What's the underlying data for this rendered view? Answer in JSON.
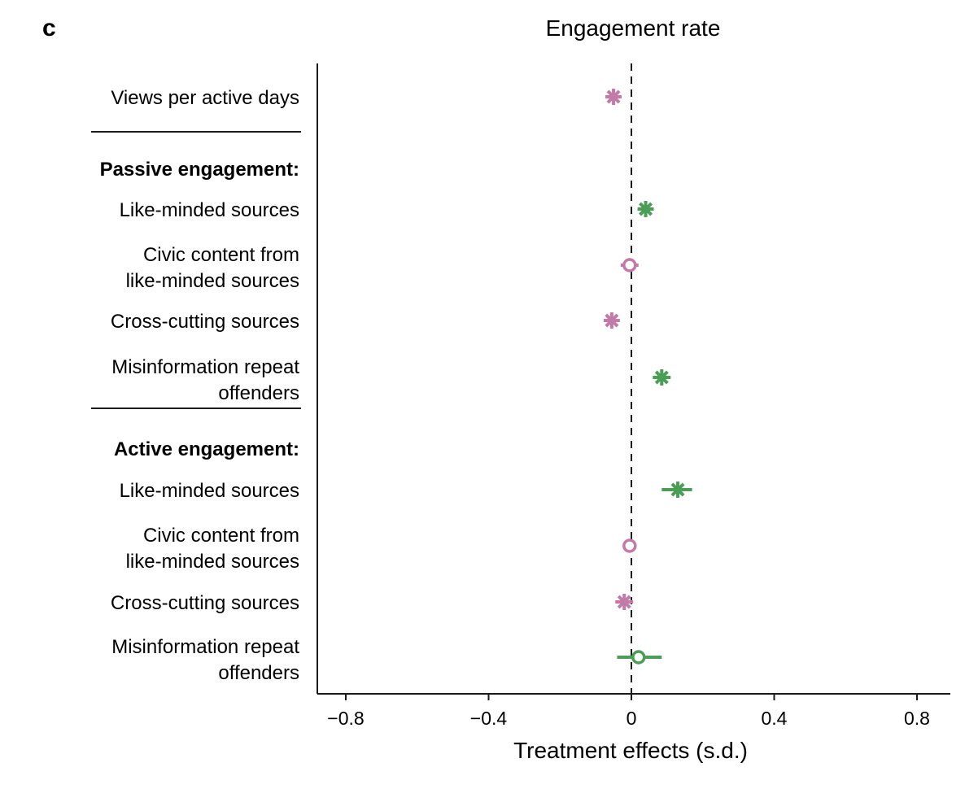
{
  "panel_label": "c",
  "chart_data": {
    "type": "scatter",
    "title": "Engagement rate",
    "xlabel": "Treatment effects (s.d.)",
    "xlim": [
      -0.8,
      0.8
    ],
    "xticks": [
      -0.8,
      -0.4,
      0,
      0.4,
      0.8
    ],
    "xtick_labels": [
      "−0.8",
      "−0.4",
      "0",
      "0.4",
      "0.8"
    ],
    "reference_line": 0,
    "colors": {
      "decrease": "#c27aa6",
      "increase": "#4a9e55"
    },
    "section_headers": [
      "Passive engagement:",
      "Active engagement:"
    ],
    "rows": [
      {
        "label": [
          "Views per active days"
        ],
        "estimate": -0.05,
        "ci": [
          -0.07,
          -0.03
        ],
        "significant": true,
        "color": "decrease"
      },
      {
        "label": [
          "Passive engagement:"
        ],
        "header": true
      },
      {
        "label": [
          "Like-minded sources"
        ],
        "estimate": 0.04,
        "ci": [
          0.02,
          0.06
        ],
        "significant": true,
        "color": "increase"
      },
      {
        "label": [
          "Civic content from",
          "like-minded sources"
        ],
        "estimate": -0.005,
        "ci": [
          -0.03,
          0.02
        ],
        "significant": false,
        "color": "decrease"
      },
      {
        "label": [
          "Cross-cutting sources"
        ],
        "estimate": -0.055,
        "ci": [
          -0.075,
          -0.035
        ],
        "significant": true,
        "color": "decrease"
      },
      {
        "label": [
          "Misinformation repeat",
          "offenders"
        ],
        "estimate": 0.085,
        "ci": [
          0.06,
          0.11
        ],
        "significant": true,
        "color": "increase"
      },
      {
        "label": [
          "Active engagement:"
        ],
        "header": true
      },
      {
        "label": [
          "Like-minded sources"
        ],
        "estimate": 0.13,
        "ci": [
          0.085,
          0.17
        ],
        "significant": true,
        "color": "increase"
      },
      {
        "label": [
          "Civic content from",
          "like-minded sources"
        ],
        "estimate": -0.005,
        "ci": [
          -0.02,
          0.01
        ],
        "significant": false,
        "color": "decrease"
      },
      {
        "label": [
          "Cross-cutting sources"
        ],
        "estimate": -0.02,
        "ci": [
          -0.045,
          0.005
        ],
        "significant": true,
        "color": "decrease"
      },
      {
        "label": [
          "Misinformation repeat",
          "offenders"
        ],
        "estimate": 0.02,
        "ci": [
          -0.04,
          0.085
        ],
        "significant": false,
        "color": "increase"
      }
    ]
  }
}
